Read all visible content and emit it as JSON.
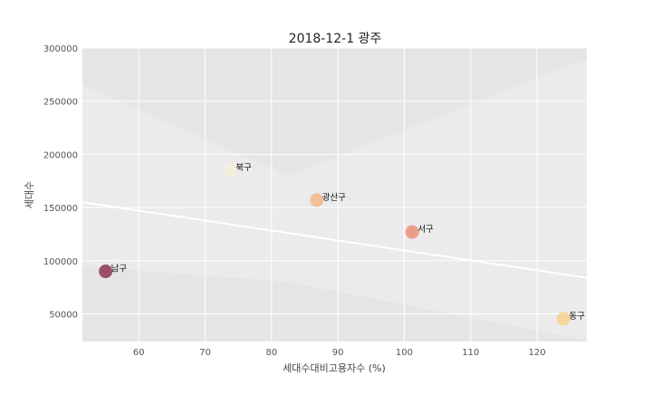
{
  "chart_data": {
    "type": "scatter",
    "title": "2018-12-1 광주",
    "xlabel": "세대수대비고용자수 (%)",
    "ylabel": "세대수",
    "xlim": [
      51.5,
      127.5
    ],
    "ylim": [
      24000,
      300000
    ],
    "xticks": [
      60,
      70,
      80,
      90,
      100,
      110,
      120
    ],
    "yticks": [
      50000,
      100000,
      150000,
      200000,
      250000,
      300000
    ],
    "grid": true,
    "points": [
      {
        "label": "북구",
        "x": 73.8,
        "y": 185000,
        "color": "#f6f0d8"
      },
      {
        "label": "광산구",
        "x": 86.8,
        "y": 157000,
        "color": "#f2b98d"
      },
      {
        "label": "서구",
        "x": 101.2,
        "y": 127000,
        "color": "#ef8f7c"
      },
      {
        "label": "남구",
        "x": 55.0,
        "y": 90000,
        "color": "#8e3550"
      },
      {
        "label": "동구",
        "x": 124.0,
        "y": 45500,
        "color": "#f8d08c"
      }
    ],
    "trendline": {
      "x": [
        51.5,
        127.5
      ],
      "y": [
        155000,
        84000
      ]
    },
    "confidence_band": {
      "upper": [
        [
          51.5,
          265000
        ],
        [
          82.5,
          180000
        ],
        [
          127.5,
          290000
        ]
      ],
      "lower": [
        [
          51.5,
          95000
        ],
        [
          82.5,
          80000
        ],
        [
          127.5,
          25000
        ]
      ]
    }
  }
}
